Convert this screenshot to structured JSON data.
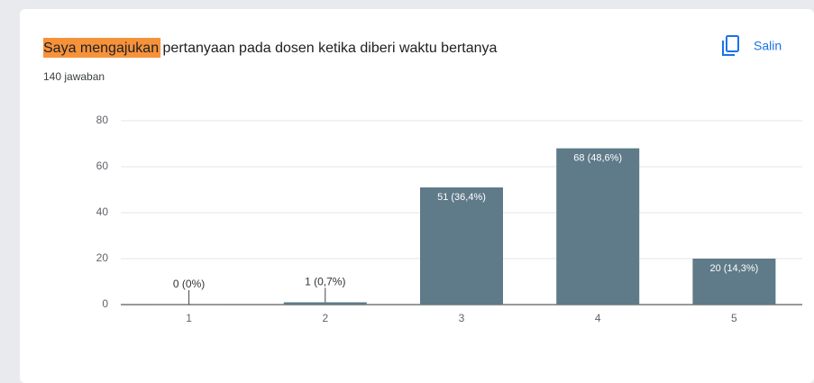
{
  "chart_data": {
    "type": "bar",
    "title": "Saya mengajukan pertanyaan pada dosen ketika diberi waktu bertanya",
    "subtitle": "140 jawaban",
    "copy_button": "Salin",
    "categories": [
      "1",
      "2",
      "3",
      "4",
      "5"
    ],
    "values": [
      0,
      1,
      51,
      68,
      20
    ],
    "value_labels": [
      "0 (0%)",
      "1 (0,7%)",
      "51 (36,4%)",
      "68 (48,6%)",
      "20 (14,3%)"
    ],
    "color": "#5f7a88",
    "ylim": [
      0,
      80
    ],
    "yticks": [
      0,
      20,
      40,
      60,
      80
    ],
    "grid": true
  }
}
